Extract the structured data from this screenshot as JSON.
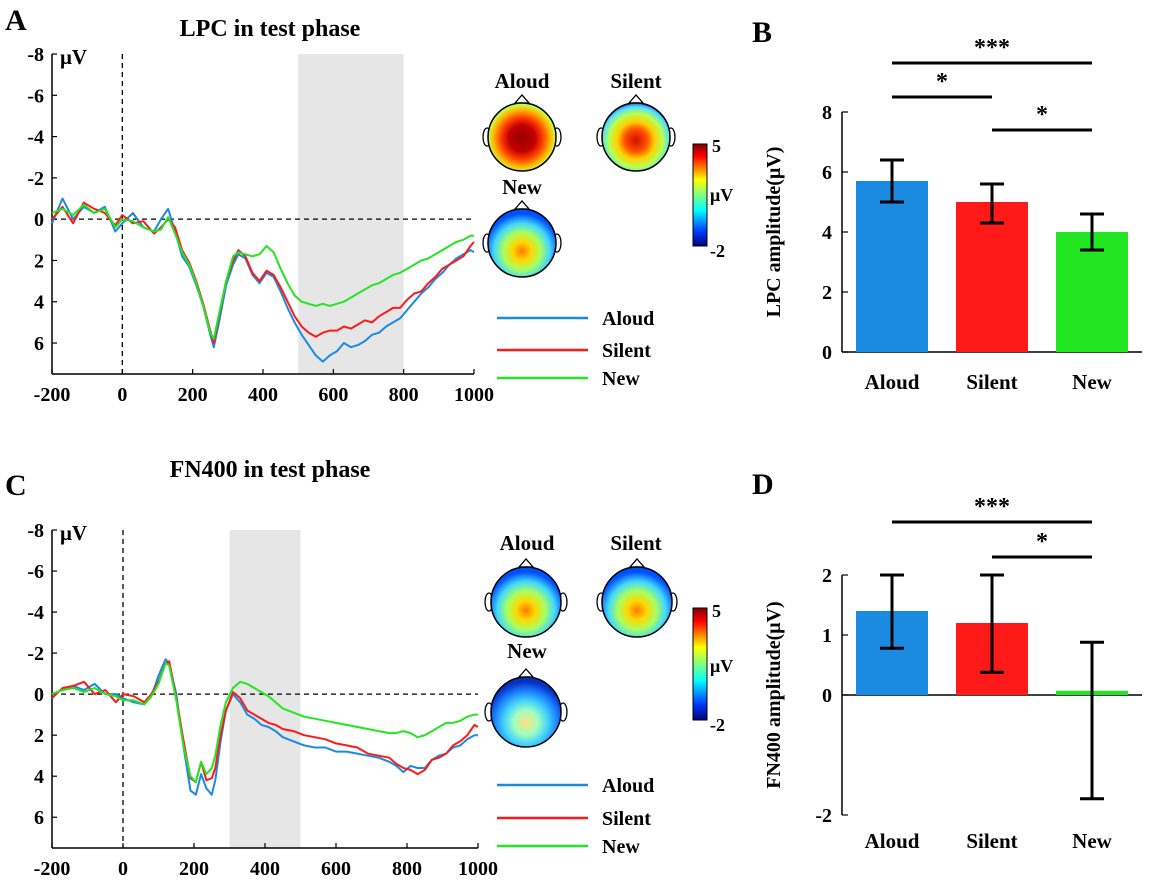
{
  "figure": {
    "panel_labels": {
      "A": "A",
      "B": "B",
      "C": "C",
      "D": "D"
    },
    "colors": {
      "aloud": "#1a8be0",
      "silent": "#ff1a1a",
      "new": "#22e622",
      "shade": "#e6e6e6"
    }
  },
  "chart_data": [
    {
      "id": "A",
      "type": "line",
      "title": "LPC in test phase",
      "ylabel": "μV",
      "xlabel": "",
      "xlim": [
        -200,
        1000
      ],
      "ylim": [
        -8,
        7.5
      ],
      "y_inverted": true,
      "x_ticks": [
        "-200",
        "0",
        "200",
        "400",
        "600",
        "800",
        "1000"
      ],
      "y_ticks": [
        "-8",
        "-6",
        "-4",
        "-2",
        "0",
        "2",
        "4",
        "6"
      ],
      "shaded_window": [
        500,
        800
      ],
      "legend": [
        "Aloud",
        "Silent",
        "New"
      ],
      "topomap_labels": [
        "Aloud",
        "Silent",
        "New"
      ],
      "colorbar": {
        "max": "5",
        "min": "-2",
        "unit": "μV"
      },
      "series": [
        {
          "name": "Aloud",
          "x": [
            -200,
            -170,
            -140,
            -110,
            -80,
            -50,
            -20,
            0,
            30,
            60,
            90,
            110,
            130,
            150,
            170,
            190,
            210,
            230,
            250,
            260,
            275,
            295,
            315,
            330,
            350,
            370,
            390,
            410,
            430,
            450,
            470,
            490,
            510,
            530,
            550,
            570,
            590,
            610,
            630,
            650,
            670,
            690,
            710,
            730,
            750,
            770,
            790,
            810,
            830,
            850,
            870,
            890,
            910,
            930,
            950,
            970,
            990,
            1000
          ],
          "y": [
            0.2,
            -1.0,
            0.0,
            -0.6,
            -0.3,
            -0.6,
            0.6,
            0.2,
            -0.3,
            0.4,
            0.6,
            0.0,
            -0.5,
            0.6,
            1.8,
            2.3,
            3.2,
            4.2,
            5.6,
            6.2,
            5.0,
            3.2,
            2.2,
            1.7,
            1.9,
            2.7,
            3.1,
            2.6,
            2.8,
            3.5,
            4.3,
            5.0,
            5.6,
            6.1,
            6.6,
            6.9,
            6.6,
            6.4,
            6.0,
            6.2,
            6.1,
            5.9,
            5.6,
            5.5,
            5.2,
            5.0,
            4.8,
            4.4,
            4.0,
            3.6,
            3.3,
            2.9,
            2.6,
            2.2,
            1.9,
            1.7,
            1.5,
            1.6
          ]
        },
        {
          "name": "Silent",
          "x": [
            -200,
            -170,
            -140,
            -110,
            -80,
            -50,
            -20,
            0,
            30,
            60,
            90,
            110,
            130,
            150,
            170,
            190,
            210,
            230,
            250,
            260,
            275,
            295,
            315,
            330,
            350,
            370,
            390,
            410,
            430,
            450,
            470,
            490,
            510,
            530,
            550,
            570,
            590,
            610,
            630,
            650,
            670,
            690,
            710,
            730,
            750,
            770,
            790,
            810,
            830,
            850,
            870,
            890,
            910,
            930,
            950,
            970,
            990,
            1000
          ],
          "y": [
            0.0,
            -0.6,
            0.2,
            -0.8,
            -0.5,
            -0.3,
            0.3,
            -0.2,
            0.2,
            0.1,
            0.7,
            0.4,
            0.0,
            0.4,
            1.5,
            2.1,
            3.0,
            4.1,
            5.4,
            6.0,
            4.7,
            3.0,
            2.0,
            1.5,
            1.8,
            2.6,
            3.0,
            2.5,
            2.7,
            3.3,
            4.0,
            4.7,
            5.2,
            5.5,
            5.7,
            5.5,
            5.4,
            5.4,
            5.2,
            5.3,
            5.1,
            4.9,
            5.0,
            4.7,
            4.5,
            4.3,
            4.3,
            3.9,
            3.6,
            3.5,
            3.1,
            2.8,
            2.4,
            2.2,
            2.0,
            1.8,
            1.3,
            1.1
          ]
        },
        {
          "name": "New",
          "x": [
            -200,
            -170,
            -140,
            -110,
            -80,
            -50,
            -20,
            0,
            30,
            60,
            90,
            110,
            130,
            150,
            170,
            190,
            210,
            230,
            250,
            260,
            275,
            295,
            315,
            330,
            350,
            370,
            390,
            410,
            430,
            450,
            470,
            490,
            510,
            530,
            550,
            570,
            590,
            610,
            630,
            650,
            670,
            690,
            710,
            730,
            750,
            770,
            790,
            810,
            830,
            850,
            870,
            890,
            910,
            930,
            950,
            970,
            990,
            1000
          ],
          "y": [
            -0.3,
            -0.5,
            -0.2,
            -0.7,
            -0.3,
            -0.5,
            0.4,
            0.0,
            0.1,
            0.4,
            0.6,
            0.5,
            -0.1,
            0.7,
            1.6,
            2.2,
            3.1,
            4.2,
            5.5,
            5.8,
            4.6,
            3.0,
            1.8,
            1.6,
            1.7,
            1.8,
            1.7,
            1.3,
            1.6,
            2.4,
            3.1,
            3.7,
            4.0,
            4.1,
            4.2,
            4.1,
            4.2,
            4.1,
            4.0,
            3.8,
            3.6,
            3.4,
            3.2,
            3.1,
            2.9,
            2.7,
            2.6,
            2.4,
            2.2,
            2.0,
            1.9,
            1.7,
            1.5,
            1.3,
            1.1,
            1.0,
            0.8,
            0.8
          ]
        }
      ]
    },
    {
      "id": "B",
      "type": "bar",
      "title": "",
      "ylabel": "LPC amplitude(μV)",
      "categories": [
        "Aloud",
        "Silent",
        "New"
      ],
      "values": [
        5.7,
        5.0,
        4.0
      ],
      "error_bars": [
        [
          5.0,
          6.4
        ],
        [
          4.3,
          5.6
        ],
        [
          3.4,
          4.6
        ]
      ],
      "ylim": [
        0,
        8
      ],
      "y_ticks": [
        "0",
        "2",
        "4",
        "6",
        "8"
      ],
      "significance": [
        {
          "from": "Aloud",
          "to": "New",
          "label": "***"
        },
        {
          "from": "Aloud",
          "to": "Silent",
          "label": "*"
        },
        {
          "from": "Silent",
          "to": "New",
          "label": "*"
        }
      ]
    },
    {
      "id": "C",
      "type": "line",
      "title": "FN400 in test phase",
      "ylabel": "μV",
      "xlabel": "",
      "xlim": [
        -200,
        1000
      ],
      "ylim": [
        -8,
        7.5
      ],
      "y_inverted": true,
      "x_ticks": [
        "-200",
        "0",
        "200",
        "400",
        "600",
        "800",
        "1000"
      ],
      "y_ticks": [
        "-8",
        "-6",
        "-4",
        "-2",
        "0",
        "2",
        "4",
        "6"
      ],
      "shaded_window": [
        300,
        500
      ],
      "legend": [
        "Aloud",
        "Silent",
        "New"
      ],
      "topomap_labels": [
        "Aloud",
        "Silent",
        "New"
      ],
      "colorbar": {
        "max": "5",
        "min": "-2",
        "unit": "μV"
      },
      "series": [
        {
          "name": "Aloud",
          "x": [
            -200,
            -170,
            -140,
            -110,
            -80,
            -50,
            -20,
            0,
            30,
            60,
            80,
            100,
            120,
            130,
            150,
            170,
            190,
            205,
            220,
            235,
            250,
            260,
            275,
            290,
            310,
            330,
            350,
            370,
            390,
            410,
            430,
            450,
            480,
            510,
            540,
            570,
            600,
            630,
            660,
            690,
            720,
            750,
            770,
            790,
            810,
            830,
            850,
            870,
            890,
            910,
            930,
            950,
            970,
            990,
            1000
          ],
          "y": [
            0.0,
            -0.2,
            -0.4,
            -0.2,
            -0.5,
            0.0,
            0.0,
            0.2,
            0.4,
            0.5,
            0.1,
            -0.9,
            -1.7,
            -1.5,
            0.0,
            2.5,
            4.7,
            4.9,
            3.9,
            4.6,
            4.9,
            4.2,
            2.3,
            0.8,
            0.0,
            0.4,
            1.0,
            1.2,
            1.5,
            1.6,
            1.8,
            2.1,
            2.3,
            2.5,
            2.6,
            2.6,
            2.8,
            2.8,
            2.9,
            3.0,
            3.1,
            3.3,
            3.5,
            3.8,
            3.5,
            3.6,
            3.6,
            3.2,
            3.0,
            2.9,
            2.6,
            2.5,
            2.2,
            2.0,
            2.0
          ]
        },
        {
          "name": "Silent",
          "x": [
            -200,
            -170,
            -140,
            -110,
            -80,
            -50,
            -20,
            0,
            30,
            60,
            80,
            100,
            120,
            130,
            150,
            170,
            190,
            205,
            220,
            235,
            250,
            260,
            275,
            290,
            310,
            330,
            350,
            370,
            390,
            410,
            430,
            450,
            480,
            510,
            540,
            570,
            600,
            630,
            660,
            690,
            720,
            750,
            770,
            790,
            810,
            830,
            850,
            870,
            890,
            910,
            930,
            950,
            970,
            990,
            1000
          ],
          "y": [
            0.2,
            -0.3,
            -0.4,
            -0.6,
            0.0,
            -0.2,
            0.4,
            0.0,
            0.1,
            0.4,
            0.0,
            -0.6,
            -1.5,
            -1.6,
            0.2,
            2.2,
            4.1,
            4.3,
            3.3,
            4.2,
            4.1,
            3.6,
            2.0,
            0.8,
            -0.1,
            0.2,
            0.8,
            1.0,
            1.2,
            1.4,
            1.5,
            1.7,
            1.8,
            2.0,
            2.1,
            2.2,
            2.4,
            2.5,
            2.6,
            2.9,
            3.0,
            3.1,
            3.4,
            3.6,
            3.7,
            3.9,
            3.7,
            3.2,
            3.1,
            2.9,
            2.5,
            2.3,
            2.0,
            1.5,
            1.6
          ]
        },
        {
          "name": "New",
          "x": [
            -200,
            -170,
            -140,
            -110,
            -80,
            -50,
            -20,
            0,
            30,
            60,
            80,
            100,
            120,
            130,
            150,
            170,
            190,
            205,
            220,
            235,
            250,
            260,
            275,
            290,
            310,
            330,
            350,
            370,
            390,
            410,
            430,
            450,
            480,
            510,
            540,
            570,
            600,
            630,
            660,
            690,
            720,
            750,
            770,
            790,
            810,
            830,
            850,
            870,
            890,
            910,
            930,
            950,
            970,
            990,
            1000
          ],
          "y": [
            0.0,
            -0.2,
            -0.3,
            -0.1,
            -0.3,
            0.0,
            0.1,
            0.3,
            0.3,
            0.5,
            0.1,
            -0.5,
            -1.5,
            -1.4,
            0.3,
            2.5,
            4.0,
            4.3,
            3.3,
            3.9,
            3.6,
            3.0,
            1.5,
            0.4,
            -0.3,
            -0.6,
            -0.5,
            -0.3,
            -0.1,
            0.1,
            0.4,
            0.7,
            0.9,
            1.1,
            1.2,
            1.3,
            1.4,
            1.5,
            1.6,
            1.7,
            1.8,
            1.9,
            1.9,
            1.8,
            1.9,
            2.1,
            2.0,
            1.8,
            1.6,
            1.4,
            1.4,
            1.3,
            1.1,
            1.0,
            1.0
          ]
        }
      ]
    },
    {
      "id": "D",
      "type": "bar",
      "title": "",
      "ylabel": "FN400 amplitude(μV)",
      "categories": [
        "Aloud",
        "Silent",
        "New"
      ],
      "values": [
        1.4,
        1.2,
        0.07
      ],
      "error_bars": [
        [
          0.78,
          2.0
        ],
        [
          0.38,
          2.0
        ],
        [
          -1.73,
          0.88
        ]
      ],
      "ylim": [
        -2,
        2
      ],
      "y_ticks": [
        "-2",
        "0",
        "1",
        "2"
      ],
      "significance": [
        {
          "from": "Aloud",
          "to": "New",
          "label": "***"
        },
        {
          "from": "Silent",
          "to": "New",
          "label": "*"
        }
      ]
    }
  ]
}
